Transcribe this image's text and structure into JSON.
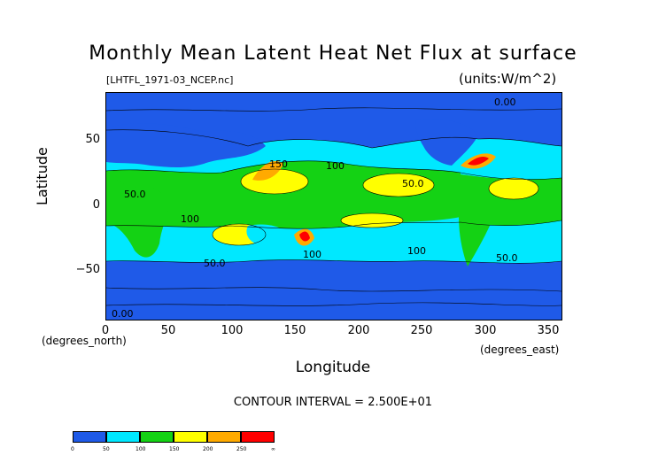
{
  "header": {
    "title": "Monthly Mean Latent Heat Net Flux at surface",
    "file": "[LHTFL_1971-03_NCEP.nc]",
    "units": "(units:W/m^2)"
  },
  "axes": {
    "ylabel": "Latitude",
    "xlabel": "Longitude",
    "ytick_labels": [
      "50",
      "0",
      "−50"
    ],
    "xtick_labels": [
      "0",
      "50",
      "100",
      "150",
      "200",
      "250",
      "300",
      "350"
    ],
    "y_unit": "(degrees_north)",
    "x_unit": "(degrees_east)",
    "xlim": [
      0,
      360
    ],
    "ylim": [
      -90,
      90
    ]
  },
  "contour_interval": "CONTOUR INTERVAL = 2.500E+01",
  "map_labels": {
    "l1": "0.00",
    "l2": "50.0",
    "l3": "100",
    "l4": "150",
    "l5": "100",
    "l6": "50.0",
    "l7": "50.0",
    "l8": "100",
    "l9": "100",
    "l10": "0.00",
    "l11": "50.0"
  },
  "colorbar": {
    "colors": [
      "#1f5ae8",
      "#00e8ff",
      "#14d214",
      "#ffff00",
      "#ffaa00",
      "#ff0000"
    ],
    "labels": [
      "0",
      "50",
      "100",
      "150",
      "200",
      "250",
      "∞"
    ]
  },
  "chart_data": {
    "type": "heatmap",
    "title": "Monthly Mean Latent Heat Net Flux at surface",
    "xlabel": "Longitude",
    "ylabel": "Latitude",
    "units": "W/m^2",
    "x_unit": "degrees_east",
    "y_unit": "degrees_north",
    "xlim": [
      0,
      360
    ],
    "ylim": [
      -90,
      90
    ],
    "levels": [
      0,
      50,
      100,
      150,
      200,
      250
    ],
    "contour_interval": 25
  }
}
